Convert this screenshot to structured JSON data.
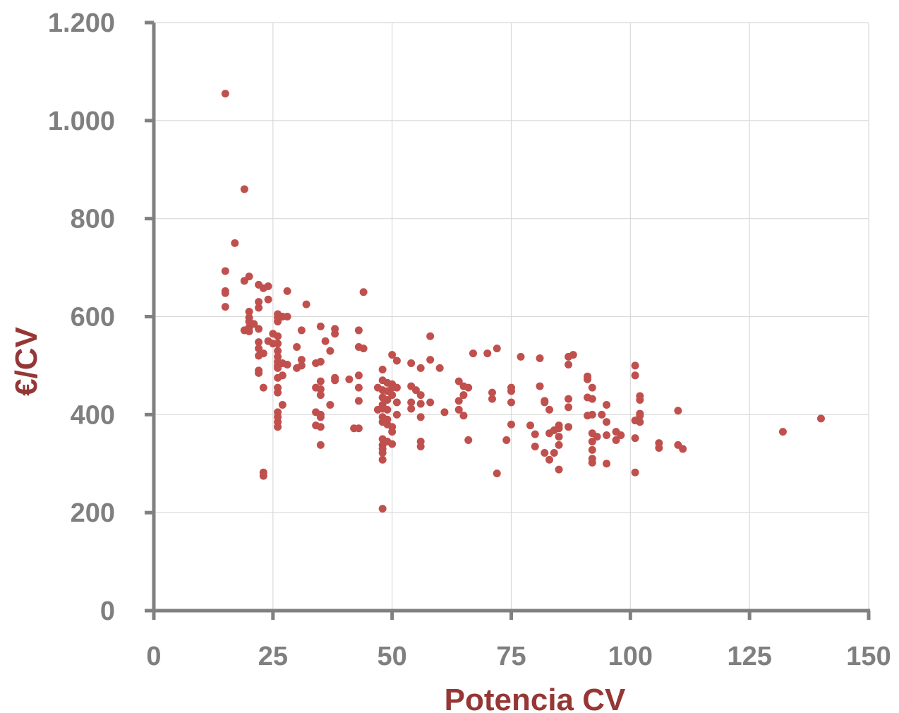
{
  "chart_data": {
    "type": "scatter",
    "title": "",
    "xlabel": "Potencia CV",
    "ylabel": "€/CV",
    "xlim": [
      0,
      150
    ],
    "ylim": [
      0,
      1200
    ],
    "x_ticks": [
      0,
      25,
      50,
      75,
      100,
      125,
      150
    ],
    "y_ticks": [
      0,
      200,
      400,
      600,
      800,
      1000,
      1200
    ],
    "x_tick_labels": [
      "0",
      "25",
      "50",
      "75",
      "100",
      "125",
      "150"
    ],
    "y_tick_labels": [
      "0",
      "200",
      "400",
      "600",
      "800",
      "1.000",
      "1.200"
    ],
    "grid": true,
    "legend": "none",
    "marker_color": "#c0504d",
    "points": [
      [
        15,
        1055
      ],
      [
        19,
        860
      ],
      [
        17,
        750
      ],
      [
        15,
        693
      ],
      [
        20,
        682
      ],
      [
        19,
        673
      ],
      [
        15,
        652
      ],
      [
        15,
        648
      ],
      [
        15,
        620
      ],
      [
        22,
        665
      ],
      [
        23,
        658
      ],
      [
        24,
        662
      ],
      [
        28,
        652
      ],
      [
        24,
        635
      ],
      [
        22,
        630
      ],
      [
        22,
        618
      ],
      [
        20,
        610
      ],
      [
        20,
        598
      ],
      [
        20,
        590
      ],
      [
        21,
        585
      ],
      [
        20,
        578
      ],
      [
        19,
        572
      ],
      [
        20,
        570
      ],
      [
        22,
        575
      ],
      [
        25,
        565
      ],
      [
        24,
        550
      ],
      [
        22,
        548
      ],
      [
        22,
        535
      ],
      [
        23,
        525
      ],
      [
        22,
        520
      ],
      [
        22,
        490
      ],
      [
        22,
        485
      ],
      [
        26,
        605
      ],
      [
        26,
        598
      ],
      [
        27,
        600
      ],
      [
        28,
        600
      ],
      [
        26,
        590
      ],
      [
        26,
        560
      ],
      [
        26,
        545
      ],
      [
        25,
        545
      ],
      [
        26,
        530
      ],
      [
        26,
        518
      ],
      [
        26,
        508
      ],
      [
        27,
        505
      ],
      [
        28,
        502
      ],
      [
        26,
        500
      ],
      [
        26,
        495
      ],
      [
        27,
        480
      ],
      [
        26,
        475
      ],
      [
        26,
        455
      ],
      [
        26,
        445
      ],
      [
        23,
        455
      ],
      [
        27,
        420
      ],
      [
        26,
        405
      ],
      [
        26,
        395
      ],
      [
        26,
        385
      ],
      [
        26,
        375
      ],
      [
        23,
        282
      ],
      [
        23,
        275
      ],
      [
        32,
        625
      ],
      [
        31,
        572
      ],
      [
        30,
        538
      ],
      [
        31,
        512
      ],
      [
        31,
        500
      ],
      [
        30,
        495
      ],
      [
        35,
        580
      ],
      [
        38,
        575
      ],
      [
        38,
        565
      ],
      [
        36,
        550
      ],
      [
        37,
        530
      ],
      [
        35,
        508
      ],
      [
        34,
        505
      ],
      [
        38,
        475
      ],
      [
        38,
        470
      ],
      [
        35,
        468
      ],
      [
        34,
        455
      ],
      [
        35,
        452
      ],
      [
        35,
        440
      ],
      [
        37,
        420
      ],
      [
        34,
        405
      ],
      [
        35,
        400
      ],
      [
        35,
        395
      ],
      [
        35,
        375
      ],
      [
        34,
        378
      ],
      [
        35,
        338
      ],
      [
        44,
        650
      ],
      [
        43,
        572
      ],
      [
        43,
        538
      ],
      [
        44,
        535
      ],
      [
        43,
        480
      ],
      [
        41,
        472
      ],
      [
        43,
        455
      ],
      [
        43,
        428
      ],
      [
        43,
        372
      ],
      [
        42,
        372
      ],
      [
        48,
        492
      ],
      [
        50,
        522
      ],
      [
        51,
        510
      ],
      [
        48,
        470
      ],
      [
        49,
        465
      ],
      [
        50,
        462
      ],
      [
        50,
        455
      ],
      [
        51,
        455
      ],
      [
        47,
        455
      ],
      [
        48,
        450
      ],
      [
        49,
        448
      ],
      [
        50,
        440
      ],
      [
        48,
        435
      ],
      [
        49,
        430
      ],
      [
        51,
        425
      ],
      [
        48,
        420
      ],
      [
        48,
        412
      ],
      [
        49,
        410
      ],
      [
        47,
        410
      ],
      [
        51,
        400
      ],
      [
        48,
        395
      ],
      [
        49,
        390
      ],
      [
        48,
        385
      ],
      [
        49,
        380
      ],
      [
        50,
        375
      ],
      [
        50,
        365
      ],
      [
        48,
        350
      ],
      [
        49,
        345
      ],
      [
        50,
        340
      ],
      [
        48,
        338
      ],
      [
        48,
        330
      ],
      [
        48,
        322
      ],
      [
        48,
        308
      ],
      [
        48,
        208
      ],
      [
        54,
        505
      ],
      [
        56,
        495
      ],
      [
        54,
        458
      ],
      [
        55,
        450
      ],
      [
        56,
        440
      ],
      [
        54,
        425
      ],
      [
        56,
        422
      ],
      [
        54,
        412
      ],
      [
        56,
        395
      ],
      [
        56,
        345
      ],
      [
        56,
        335
      ],
      [
        58,
        560
      ],
      [
        58,
        512
      ],
      [
        60,
        495
      ],
      [
        58,
        425
      ],
      [
        61,
        405
      ],
      [
        64,
        468
      ],
      [
        65,
        458
      ],
      [
        66,
        455
      ],
      [
        65,
        440
      ],
      [
        64,
        428
      ],
      [
        64,
        410
      ],
      [
        65,
        398
      ],
      [
        66,
        348
      ],
      [
        67,
        525
      ],
      [
        70,
        525
      ],
      [
        72,
        535
      ],
      [
        71,
        445
      ],
      [
        71,
        432
      ],
      [
        75,
        455
      ],
      [
        75,
        448
      ],
      [
        75,
        425
      ],
      [
        75,
        380
      ],
      [
        74,
        348
      ],
      [
        72,
        280
      ],
      [
        77,
        518
      ],
      [
        81,
        515
      ],
      [
        81,
        458
      ],
      [
        82,
        428
      ],
      [
        82,
        425
      ],
      [
        83,
        410
      ],
      [
        79,
        378
      ],
      [
        80,
        360
      ],
      [
        80,
        335
      ],
      [
        83,
        362
      ],
      [
        82,
        322
      ],
      [
        83,
        308
      ],
      [
        85,
        378
      ],
      [
        85,
        372
      ],
      [
        84,
        368
      ],
      [
        85,
        355
      ],
      [
        85,
        338
      ],
      [
        84,
        322
      ],
      [
        85,
        288
      ],
      [
        87,
        518
      ],
      [
        88,
        522
      ],
      [
        87,
        502
      ],
      [
        87,
        432
      ],
      [
        87,
        415
      ],
      [
        87,
        375
      ],
      [
        91,
        478
      ],
      [
        91,
        472
      ],
      [
        92,
        455
      ],
      [
        91,
        435
      ],
      [
        92,
        432
      ],
      [
        91,
        398
      ],
      [
        92,
        400
      ],
      [
        94,
        400
      ],
      [
        95,
        420
      ],
      [
        95,
        385
      ],
      [
        92,
        362
      ],
      [
        93,
        355
      ],
      [
        92,
        345
      ],
      [
        92,
        328
      ],
      [
        92,
        310
      ],
      [
        92,
        302
      ],
      [
        95,
        358
      ],
      [
        95,
        300
      ],
      [
        97,
        365
      ],
      [
        97,
        348
      ],
      [
        98,
        358
      ],
      [
        101,
        500
      ],
      [
        101,
        480
      ],
      [
        102,
        438
      ],
      [
        102,
        430
      ],
      [
        102,
        402
      ],
      [
        102,
        398
      ],
      [
        101,
        388
      ],
      [
        102,
        385
      ],
      [
        101,
        352
      ],
      [
        101,
        282
      ],
      [
        106,
        342
      ],
      [
        106,
        332
      ],
      [
        110,
        408
      ],
      [
        110,
        338
      ],
      [
        111,
        330
      ],
      [
        132,
        365
      ],
      [
        140,
        392
      ]
    ]
  }
}
